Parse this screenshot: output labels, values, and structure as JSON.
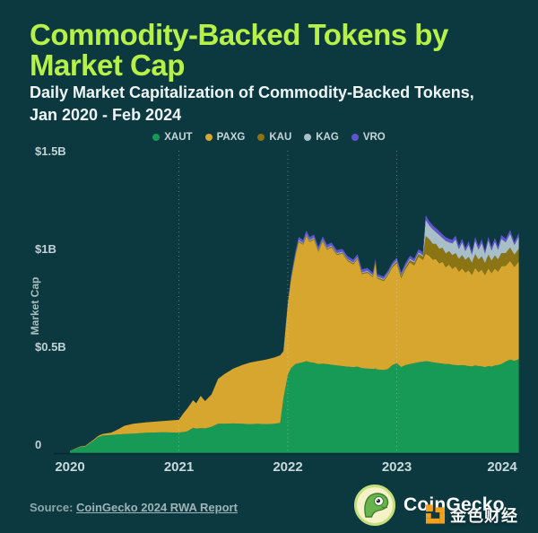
{
  "page": {
    "background": "#0c3940"
  },
  "header": {
    "title_line1": "Commodity-Backed Tokens by",
    "title_line2": "Market Cap",
    "title_color": "#b6f148",
    "subtitle_line1": "Daily Market Capitalization of Commodity-Backed Tokens,",
    "subtitle_line2": "Jan 2020 - Feb 2024"
  },
  "footer": {
    "source_label": "Source:",
    "source_link_text": "CoinGecko 2024 RWA Report",
    "brand_name": "CoinGecko",
    "watermark_text": "金色财经",
    "watermark_icon_color": "#f5a01b"
  },
  "chart_data": {
    "type": "area",
    "stacked": true,
    "title": "Commodity-Backed Tokens by Market Cap",
    "subtitle": "Daily Market Capitalization of Commodity-Backed Tokens, Jan 2020 - Feb 2024",
    "xlabel": "",
    "ylabel": "Market Cap",
    "unit": "$B",
    "xlim": [
      2020.0,
      2024.16
    ],
    "ylim": [
      0,
      1.55
    ],
    "grid": "vertical-dotted",
    "gridlines_at": [
      2021,
      2022,
      2023
    ],
    "legend_position": "top-center",
    "x_ticks": [
      {
        "t": 2020,
        "label": "2020"
      },
      {
        "t": 2021,
        "label": "2021"
      },
      {
        "t": 2022,
        "label": "2022"
      },
      {
        "t": 2023,
        "label": "2023"
      },
      {
        "t": 2024,
        "label": "2024"
      }
    ],
    "y_ticks": [
      {
        "v": 0,
        "label": "0"
      },
      {
        "v": 0.5,
        "label": "$0.5B"
      },
      {
        "v": 1.0,
        "label": "$1B"
      },
      {
        "v": 1.5,
        "label": "$1.5B"
      }
    ],
    "legend": [
      {
        "name": "XAUT",
        "color": "#169a56"
      },
      {
        "name": "PAXG",
        "color": "#d7a62f"
      },
      {
        "name": "KAU",
        "color": "#8a7414"
      },
      {
        "name": "KAG",
        "color": "#a9bfc8"
      },
      {
        "name": "VRO",
        "color": "#6055cf"
      }
    ],
    "x": [
      2020.0,
      2020.05,
      2020.1,
      2020.14,
      2020.18,
      2020.22,
      2020.26,
      2020.3,
      2020.38,
      2020.45,
      2020.5,
      2020.58,
      2020.7,
      2020.85,
      2021.0,
      2021.04,
      2021.08,
      2021.13,
      2021.16,
      2021.2,
      2021.24,
      2021.3,
      2021.36,
      2021.42,
      2021.5,
      2021.58,
      2021.65,
      2021.72,
      2021.8,
      2021.88,
      2021.93,
      2021.96,
      2022.0,
      2022.03,
      2022.07,
      2022.1,
      2022.14,
      2022.17,
      2022.2,
      2022.24,
      2022.28,
      2022.32,
      2022.36,
      2022.4,
      2022.45,
      2022.5,
      2022.55,
      2022.6,
      2022.64,
      2022.68,
      2022.73,
      2022.78,
      2022.805,
      2022.82,
      2022.88,
      2022.92,
      2022.96,
      2023.0,
      2023.04,
      2023.08,
      2023.12,
      2023.16,
      2023.2,
      2023.24,
      2023.265,
      2023.3,
      2023.33,
      2023.36,
      2023.39,
      2023.42,
      2023.45,
      2023.48,
      2023.51,
      2023.54,
      2023.57,
      2023.6,
      2023.63,
      2023.66,
      2023.69,
      2023.72,
      2023.75,
      2023.78,
      2023.81,
      2023.84,
      2023.87,
      2023.9,
      2023.93,
      2023.96,
      2024.0,
      2024.04,
      2024.08,
      2024.12
    ],
    "series": [
      {
        "name": "XAUT",
        "color": "#169a56",
        "values": [
          0.012,
          0.022,
          0.032,
          0.034,
          0.05,
          0.065,
          0.082,
          0.09,
          0.093,
          0.096,
          0.098,
          0.1,
          0.104,
          0.107,
          0.105,
          0.108,
          0.112,
          0.13,
          0.125,
          0.128,
          0.126,
          0.135,
          0.15,
          0.15,
          0.152,
          0.15,
          0.148,
          0.15,
          0.148,
          0.15,
          0.155,
          0.28,
          0.4,
          0.435,
          0.455,
          0.46,
          0.465,
          0.47,
          0.465,
          0.462,
          0.455,
          0.458,
          0.455,
          0.452,
          0.448,
          0.445,
          0.442,
          0.44,
          0.442,
          0.435,
          0.432,
          0.43,
          0.432,
          0.428,
          0.425,
          0.43,
          0.45,
          0.46,
          0.44,
          0.45,
          0.455,
          0.46,
          0.465,
          0.468,
          0.47,
          0.468,
          0.465,
          0.462,
          0.46,
          0.458,
          0.455,
          0.455,
          0.452,
          0.45,
          0.448,
          0.45,
          0.448,
          0.445,
          0.443,
          0.448,
          0.445,
          0.443,
          0.44,
          0.445,
          0.442,
          0.448,
          0.45,
          0.455,
          0.468,
          0.478,
          0.472,
          0.48
        ]
      },
      {
        "name": "PAXG",
        "color": "#d7a62f",
        "values": [
          0.0,
          0.002,
          0.003,
          0.003,
          0.004,
          0.005,
          0.006,
          0.008,
          0.012,
          0.028,
          0.042,
          0.05,
          0.054,
          0.057,
          0.065,
          0.095,
          0.118,
          0.14,
          0.13,
          0.165,
          0.14,
          0.165,
          0.23,
          0.255,
          0.28,
          0.3,
          0.315,
          0.32,
          0.33,
          0.34,
          0.345,
          0.24,
          0.365,
          0.455,
          0.555,
          0.62,
          0.6,
          0.64,
          0.615,
          0.63,
          0.575,
          0.625,
          0.585,
          0.6,
          0.565,
          0.575,
          0.54,
          0.525,
          0.55,
          0.48,
          0.49,
          0.47,
          0.54,
          0.465,
          0.455,
          0.48,
          0.5,
          0.51,
          0.455,
          0.49,
          0.52,
          0.5,
          0.54,
          0.52,
          0.55,
          0.54,
          0.525,
          0.53,
          0.51,
          0.52,
          0.495,
          0.51,
          0.49,
          0.505,
          0.48,
          0.495,
          0.475,
          0.49,
          0.468,
          0.5,
          0.48,
          0.495,
          0.47,
          0.5,
          0.478,
          0.495,
          0.478,
          0.5,
          0.49,
          0.505,
          0.48,
          0.5
        ]
      },
      {
        "name": "KAU",
        "color": "#8a7414",
        "values": [
          0,
          0,
          0,
          0,
          0,
          0,
          0,
          0,
          0,
          0,
          0,
          0,
          0,
          0,
          0,
          0,
          0,
          0,
          0,
          0,
          0,
          0,
          0,
          0,
          0,
          0,
          0,
          0,
          0,
          0,
          0,
          0.001,
          0.002,
          0.003,
          0.004,
          0.005,
          0.005,
          0.005,
          0.005,
          0.005,
          0.005,
          0.005,
          0.005,
          0.005,
          0.005,
          0.005,
          0.005,
          0.005,
          0.005,
          0.005,
          0.005,
          0.005,
          0.005,
          0.005,
          0.006,
          0.007,
          0.008,
          0.01,
          0.01,
          0.011,
          0.012,
          0.013,
          0.014,
          0.015,
          0.09,
          0.085,
          0.08,
          0.078,
          0.075,
          0.072,
          0.07,
          0.068,
          0.07,
          0.068,
          0.065,
          0.068,
          0.065,
          0.068,
          0.062,
          0.07,
          0.065,
          0.068,
          0.062,
          0.07,
          0.064,
          0.068,
          0.062,
          0.068,
          0.065,
          0.068,
          0.062,
          0.065
        ]
      },
      {
        "name": "KAG",
        "color": "#a9bfc8",
        "values": [
          0,
          0,
          0,
          0,
          0,
          0,
          0,
          0,
          0,
          0,
          0,
          0,
          0,
          0,
          0,
          0,
          0,
          0,
          0,
          0,
          0,
          0,
          0,
          0,
          0,
          0,
          0,
          0,
          0,
          0,
          0,
          0,
          0.002,
          0.003,
          0.004,
          0.005,
          0.005,
          0.005,
          0.005,
          0.005,
          0.005,
          0.005,
          0.005,
          0.005,
          0.005,
          0.005,
          0.005,
          0.005,
          0.005,
          0.005,
          0.005,
          0.005,
          0.005,
          0.005,
          0.005,
          0.005,
          0.005,
          0.006,
          0.006,
          0.006,
          0.007,
          0.007,
          0.008,
          0.008,
          0.082,
          0.07,
          0.075,
          0.06,
          0.07,
          0.05,
          0.065,
          0.045,
          0.06,
          0.07,
          0.05,
          0.065,
          0.045,
          0.062,
          0.042,
          0.068,
          0.05,
          0.068,
          0.048,
          0.072,
          0.052,
          0.07,
          0.05,
          0.072,
          0.055,
          0.07,
          0.05,
          0.062
        ]
      },
      {
        "name": "VRO",
        "color": "#6055cf",
        "values": [
          0,
          0,
          0,
          0,
          0,
          0,
          0,
          0,
          0,
          0,
          0,
          0,
          0,
          0,
          0,
          0,
          0,
          0,
          0,
          0,
          0,
          0,
          0,
          0,
          0,
          0,
          0,
          0,
          0,
          0,
          0.002,
          0.003,
          0.008,
          0.012,
          0.015,
          0.015,
          0.015,
          0.018,
          0.015,
          0.015,
          0.015,
          0.015,
          0.015,
          0.015,
          0.015,
          0.015,
          0.015,
          0.015,
          0.015,
          0.015,
          0.015,
          0.012,
          0.012,
          0.012,
          0.012,
          0.012,
          0.012,
          0.014,
          0.014,
          0.015,
          0.015,
          0.015,
          0.016,
          0.016,
          0.025,
          0.022,
          0.02,
          0.02,
          0.02,
          0.018,
          0.018,
          0.018,
          0.018,
          0.02,
          0.018,
          0.018,
          0.016,
          0.018,
          0.016,
          0.02,
          0.018,
          0.02,
          0.016,
          0.02,
          0.018,
          0.02,
          0.016,
          0.02,
          0.018,
          0.02,
          0.016,
          0.018
        ]
      }
    ]
  }
}
